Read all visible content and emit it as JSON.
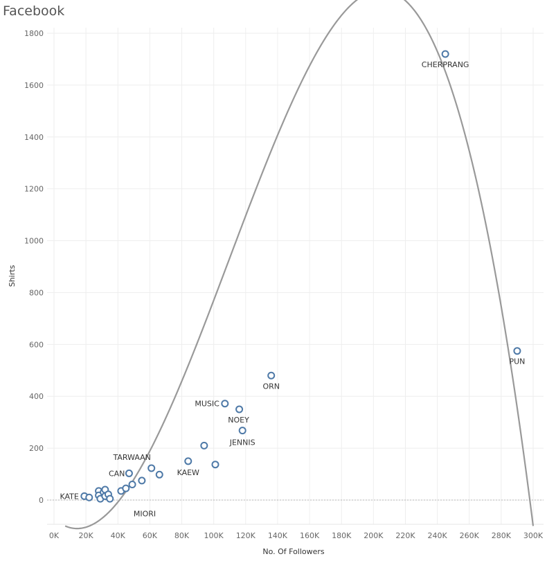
{
  "title": "Facebook",
  "chart_data": {
    "type": "scatter",
    "title": "Facebook",
    "xlabel": "No. Of Followers",
    "ylabel": "Shirts",
    "xlim": [
      0,
      305000
    ],
    "ylim": [
      -100,
      1820
    ],
    "x_ticks": [
      0,
      20000,
      40000,
      60000,
      80000,
      100000,
      120000,
      140000,
      160000,
      180000,
      200000,
      220000,
      240000,
      260000,
      280000,
      300000
    ],
    "x_tick_labels": [
      "0K",
      "20K",
      "40K",
      "60K",
      "80K",
      "100K",
      "120K",
      "140K",
      "160K",
      "180K",
      "200K",
      "220K",
      "240K",
      "260K",
      "280K",
      "300K"
    ],
    "y_ticks": [
      0,
      200,
      400,
      600,
      800,
      1000,
      1200,
      1400,
      1600,
      1800
    ],
    "y_tick_labels": [
      "0",
      "200",
      "400",
      "600",
      "800",
      "1000",
      "1200",
      "1400",
      "1600",
      "1800"
    ],
    "grid": true,
    "zero_line": true,
    "point_color": "#4e79a7",
    "trend_color": "#999999",
    "trend_line": {
      "type": "polynomial",
      "degree": 3,
      "control_points": [
        {
          "x": 7000,
          "y": -100
        },
        {
          "x": 240000,
          "y": 1730
        },
        {
          "x": 300000,
          "y": -100
        },
        {
          "x": 50000,
          "y": 80
        }
      ]
    },
    "points": [
      {
        "label": "KATE",
        "x": 19000,
        "y": 15
      },
      {
        "label": "",
        "x": 22000,
        "y": 10
      },
      {
        "label": "",
        "x": 28000,
        "y": 35
      },
      {
        "label": "",
        "x": 28000,
        "y": 18
      },
      {
        "label": "",
        "x": 29000,
        "y": 5
      },
      {
        "label": "",
        "x": 31000,
        "y": 30
      },
      {
        "label": "",
        "x": 32000,
        "y": 40
      },
      {
        "label": "",
        "x": 32000,
        "y": 15
      },
      {
        "label": "",
        "x": 34000,
        "y": 22
      },
      {
        "label": "",
        "x": 35000,
        "y": 5
      },
      {
        "label": "",
        "x": 42000,
        "y": 35
      },
      {
        "label": "",
        "x": 45000,
        "y": 45
      },
      {
        "label": "CAN",
        "x": 47000,
        "y": 103
      },
      {
        "label": "MIORI",
        "x": 49000,
        "y": 60
      },
      {
        "label": "",
        "x": 55000,
        "y": 75
      },
      {
        "label": "TARWAAN",
        "x": 61000,
        "y": 123
      },
      {
        "label": "",
        "x": 66000,
        "y": 98
      },
      {
        "label": "KAEW",
        "x": 84000,
        "y": 150
      },
      {
        "label": "",
        "x": 94000,
        "y": 210
      },
      {
        "label": "",
        "x": 101000,
        "y": 137
      },
      {
        "label": "MUSIC",
        "x": 107000,
        "y": 372
      },
      {
        "label": "NOEY",
        "x": 116000,
        "y": 350
      },
      {
        "label": "JENNIS",
        "x": 118000,
        "y": 268
      },
      {
        "label": "ORN",
        "x": 136000,
        "y": 480
      },
      {
        "label": "CHERPRANG",
        "x": 245000,
        "y": 1720
      },
      {
        "label": "PUN",
        "x": 290000,
        "y": 575
      }
    ]
  }
}
